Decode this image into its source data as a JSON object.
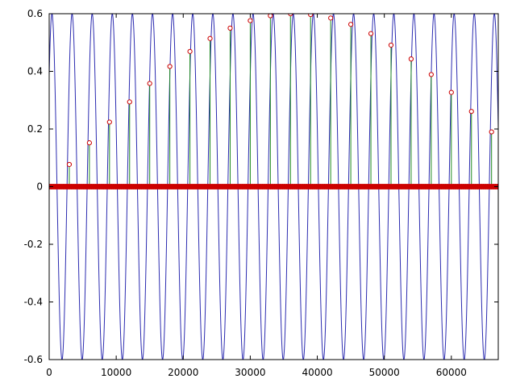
{
  "chart_data": {
    "type": "line",
    "title": "",
    "xlabel": "",
    "ylabel": "",
    "xlim": [
      0,
      67000
    ],
    "ylim": [
      -0.6,
      0.6
    ],
    "grid": false,
    "x_ticks": [
      0,
      10000,
      20000,
      30000,
      40000,
      50000,
      60000
    ],
    "x_tick_labels": [
      "0",
      "10000",
      "20000",
      "30000",
      "40000",
      "50000",
      "60000"
    ],
    "y_ticks": [
      0.6,
      0.4,
      0.2,
      0,
      -0.2,
      -0.4,
      -0.6
    ],
    "y_tick_labels": [
      "0.6",
      "0.4",
      "0.2",
      "0",
      "-0.2",
      "-0.4",
      "-0.6"
    ],
    "series": [
      {
        "kind": "sinusoid",
        "color": "#2b2bb0",
        "amplitude": 0.6,
        "period": 3000,
        "phase": 0.7,
        "x_range": [
          0,
          67000
        ]
      },
      {
        "kind": "stem",
        "color": "#1f8a1f",
        "x": [
          3000,
          6000,
          9000,
          12000,
          15000,
          18000,
          21000,
          24000,
          27000,
          30000,
          33000,
          36000,
          39000,
          42000,
          45000,
          48000,
          51000,
          54000,
          57000,
          60000,
          63000,
          66000
        ],
        "y": [
          0.077,
          0.152,
          0.224,
          0.294,
          0.358,
          0.417,
          0.469,
          0.514,
          0.55,
          0.576,
          0.593,
          0.6,
          0.597,
          0.585,
          0.563,
          0.531,
          0.491,
          0.443,
          0.389,
          0.327,
          0.261,
          0.19
        ]
      },
      {
        "kind": "baseline-markers",
        "color": "#cc0000",
        "y": 0,
        "x_range": [
          0,
          67000
        ]
      }
    ]
  },
  "colors": {
    "axis": "#000000",
    "background": "#ffffff",
    "marker_fill": "#ffffff"
  }
}
